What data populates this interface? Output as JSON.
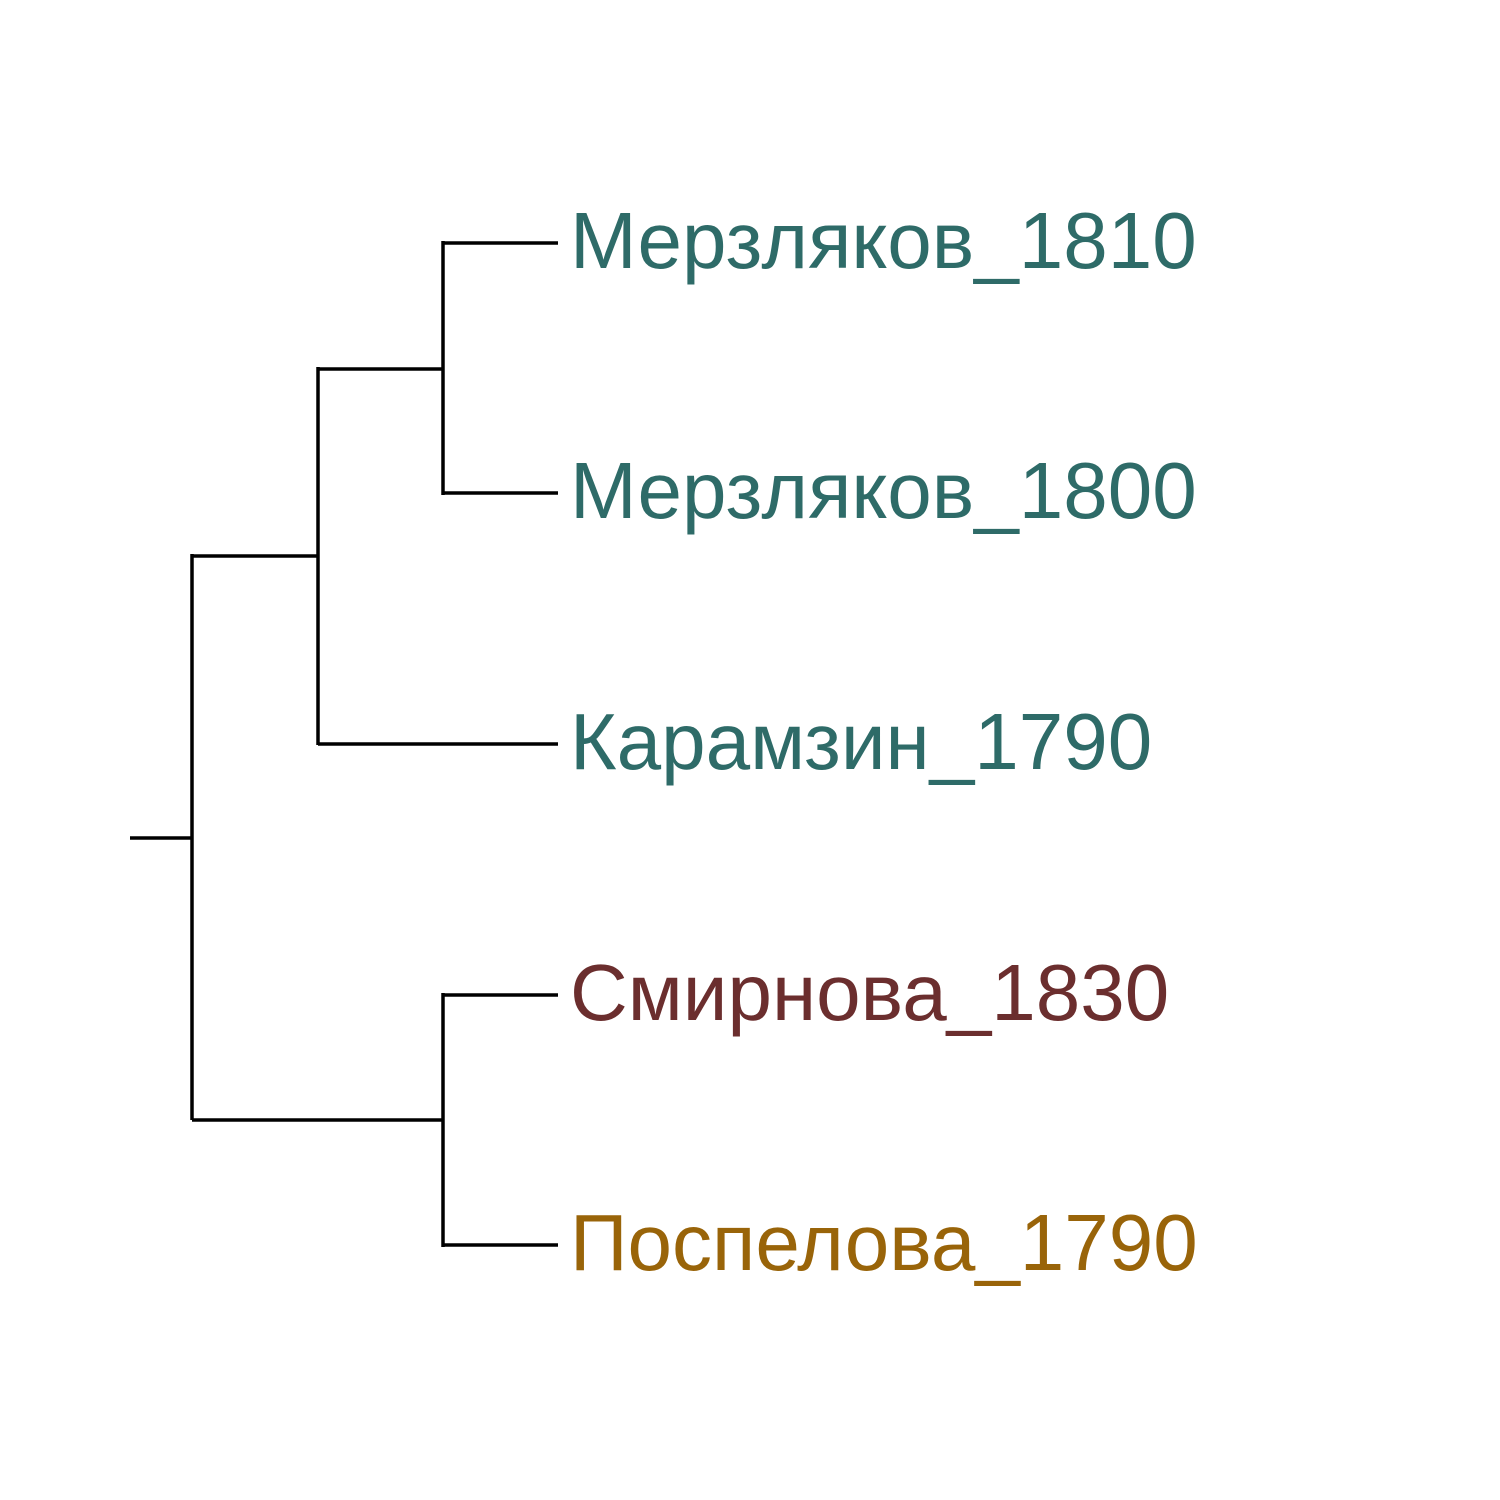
{
  "tree": {
    "leaves": [
      {
        "label": "Мерзляков_1810",
        "color": "#2e6b68"
      },
      {
        "label": "Мерзляков_1800",
        "color": "#2e6b68"
      },
      {
        "label": "Карамзин_1790",
        "color": "#2e6b68"
      },
      {
        "label": "Смирнова_1830",
        "color": "#6b2e2e"
      },
      {
        "label": "Поспелова_1790",
        "color": "#996409"
      }
    ]
  }
}
